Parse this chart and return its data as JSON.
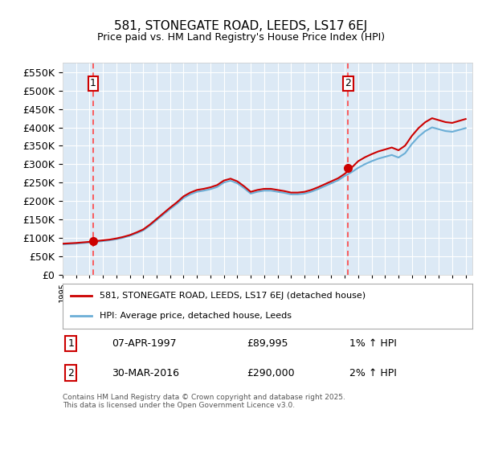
{
  "title": "581, STONEGATE ROAD, LEEDS, LS17 6EJ",
  "subtitle": "Price paid vs. HM Land Registry's House Price Index (HPI)",
  "ylabel_ticks": [
    "£0",
    "£50K",
    "£100K",
    "£150K",
    "£200K",
    "£250K",
    "£300K",
    "£350K",
    "£400K",
    "£450K",
    "£500K",
    "£550K"
  ],
  "ytick_values": [
    0,
    50000,
    100000,
    150000,
    200000,
    250000,
    300000,
    350000,
    400000,
    450000,
    500000,
    550000
  ],
  "ylim": [
    0,
    575000
  ],
  "xlim_start": 1995.0,
  "xlim_end": 2025.5,
  "background_color": "#dce9f5",
  "plot_bg_color": "#dce9f5",
  "grid_color": "#ffffff",
  "sale1_year": 1997.27,
  "sale1_price": 89995,
  "sale2_year": 2016.25,
  "sale2_price": 290000,
  "legend_line1": "581, STONEGATE ROAD, LEEDS, LS17 6EJ (detached house)",
  "legend_line2": "HPI: Average price, detached house, Leeds",
  "note1_label": "1",
  "note1_date": "07-APR-1997",
  "note1_price": "£89,995",
  "note1_hpi": "1% ↑ HPI",
  "note2_label": "2",
  "note2_date": "30-MAR-2016",
  "note2_price": "£290,000",
  "note2_hpi": "2% ↑ HPI",
  "footer": "Contains HM Land Registry data © Crown copyright and database right 2025.\nThis data is licensed under the Open Government Licence v3.0.",
  "hpi_color": "#6baed6",
  "price_color": "#cc0000",
  "marker_color": "#cc0000",
  "dashed_line_color": "#ff4444"
}
